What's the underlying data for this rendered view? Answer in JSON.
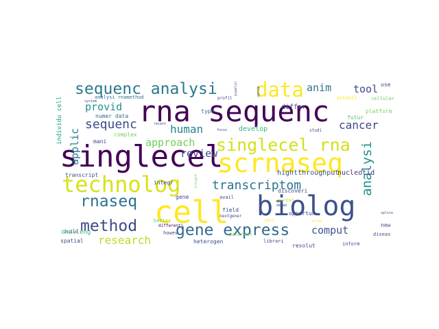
{
  "wordcloud": {
    "words": [
      {
        "text": "rna sequenc",
        "color": "#440154"
      },
      {
        "text": "singlecel",
        "color": "#440154"
      },
      {
        "text": "scrnaseq",
        "color": "#fde725"
      },
      {
        "text": "cell",
        "color": "#fde725"
      },
      {
        "text": "biolog",
        "color": "#3b528b"
      },
      {
        "text": "technolog",
        "color": "#d8e219"
      },
      {
        "text": "singlecel rna",
        "color": "#d0e11c"
      },
      {
        "text": "data",
        "color": "#fde725"
      },
      {
        "text": "sequenc analysi",
        "color": "#2a788e"
      },
      {
        "text": "gene express",
        "color": "#31688e"
      },
      {
        "text": "method",
        "color": "#3e4989"
      },
      {
        "text": "rnaseq",
        "color": "#2c728e"
      },
      {
        "text": "transcriptom",
        "color": "#2c728e"
      },
      {
        "text": "sequenc",
        "color": "#3e4989"
      },
      {
        "text": "analysi",
        "color": "#21918c"
      },
      {
        "text": "human",
        "color": "#25838e"
      },
      {
        "text": "research",
        "color": "#b5de2b"
      },
      {
        "text": "cancer",
        "color": "#404688"
      },
      {
        "text": "review",
        "color": "#3e4989"
      },
      {
        "text": "approach",
        "color": "#6ece58"
      },
      {
        "text": "comput",
        "color": "#3b528b"
      },
      {
        "text": "anim",
        "color": "#2a788e"
      },
      {
        "text": "tool",
        "color": "#3e4989"
      },
      {
        "text": "provid",
        "color": "#21918c"
      },
      {
        "text": "applic",
        "color": "#2a788e"
      },
      {
        "text": "hightthroughput",
        "color": "#3b528b"
      },
      {
        "text": "nucleotid",
        "color": "#472d7b"
      },
      {
        "text": "differ",
        "color": "#3e4989"
      },
      {
        "text": "develop",
        "color": "#35b779"
      },
      {
        "text": "type",
        "color": "#31688e"
      },
      {
        "text": "platform",
        "color": "#7ad151"
      },
      {
        "text": "futur",
        "color": "#52c569"
      },
      {
        "text": "individu cell",
        "color": "#1f9e89"
      },
      {
        "text": "numer data",
        "color": "#31688e"
      },
      {
        "text": "complex",
        "color": "#6ece58"
      },
      {
        "text": "mani",
        "color": "#3e4989"
      },
      {
        "text": "analysi rnamethod",
        "color": "#2c728e"
      },
      {
        "text": "transcript",
        "color": "#3e4989"
      },
      {
        "text": "gene",
        "color": "#414487"
      },
      {
        "text": "avail",
        "color": "#3e4989"
      },
      {
        "text": "integr",
        "color": "#3e4989"
      },
      {
        "text": "field",
        "color": "#3e4989"
      },
      {
        "text": "nextgener",
        "color": "#3e4989"
      },
      {
        "text": "discoveri",
        "color": "#3e4989"
      },
      {
        "text": "opportun",
        "color": "#3e4989"
      },
      {
        "text": "across",
        "color": "#b5de2b"
      },
      {
        "text": "challeng",
        "color": "#35b779"
      },
      {
        "text": "basic",
        "color": "#6ece58"
      },
      {
        "text": "differenti",
        "color": "#440154"
      },
      {
        "text": "howev",
        "color": "#3e4989"
      },
      {
        "text": "heterogen",
        "color": "#3e4989"
      },
      {
        "text": "pancreat",
        "color": "#6ece58"
      },
      {
        "text": "librari",
        "color": "#3e4989"
      },
      {
        "text": "resolut",
        "color": "#3e4989"
      },
      {
        "text": "inform",
        "color": "#3e4989"
      },
      {
        "text": "new",
        "color": "#3e4989"
      },
      {
        "text": "diseas",
        "color": "#3e4989"
      },
      {
        "text": "spatial",
        "color": "#3e4989"
      },
      {
        "text": "includ",
        "color": "#3e4989"
      },
      {
        "text": "use",
        "color": "#3e4989"
      },
      {
        "text": "potenti",
        "color": "#fde725"
      },
      {
        "text": "cellular",
        "color": "#6ece58"
      },
      {
        "text": "profil",
        "color": "#3e4989"
      },
      {
        "text": "pipelin",
        "color": "#3e4989"
      },
      {
        "text": "studi",
        "color": "#3e4989"
      },
      {
        "text": "recent",
        "color": "#3e4989"
      },
      {
        "text": "focus",
        "color": "#3e4989"
      },
      {
        "text": "system",
        "color": "#3e4989"
      },
      {
        "text": "insight",
        "color": "#6ece58"
      },
      {
        "text": "medic",
        "color": "#fde725"
      },
      {
        "text": "decad",
        "color": "#3e4989"
      },
      {
        "text": "rapid",
        "color": "#fde725"
      },
      {
        "text": "splice",
        "color": "#3e4989"
      },
      {
        "text": "genom",
        "color": "#3e4989"
      },
      {
        "text": "allow",
        "color": "#fde725"
      }
    ]
  }
}
